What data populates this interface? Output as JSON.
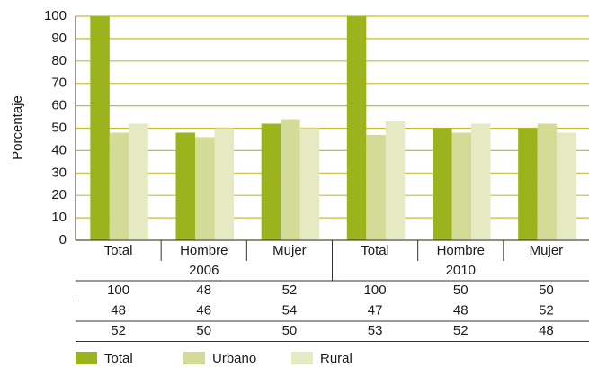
{
  "chart_data": {
    "type": "bar",
    "y_label": "Porcentaje",
    "categories": [
      "Total",
      "Hombre",
      "Mujer",
      "Total",
      "Hombre",
      "Mujer"
    ],
    "groups": [
      "2006",
      "2010"
    ],
    "series": [
      {
        "name": "Total",
        "color": "#9bb31c",
        "values": [
          100,
          48,
          52,
          100,
          50,
          50
        ]
      },
      {
        "name": "Urbano",
        "color": "#d3db96",
        "values": [
          48,
          46,
          54,
          47,
          48,
          52
        ]
      },
      {
        "name": "Rural",
        "color": "#e6eac3",
        "values": [
          52,
          50,
          50,
          53,
          52,
          48
        ]
      }
    ],
    "ylim": [
      0,
      100
    ],
    "yticks": [
      0,
      10,
      20,
      30,
      40,
      50,
      60,
      70,
      80,
      90,
      100
    ],
    "grid": true
  }
}
